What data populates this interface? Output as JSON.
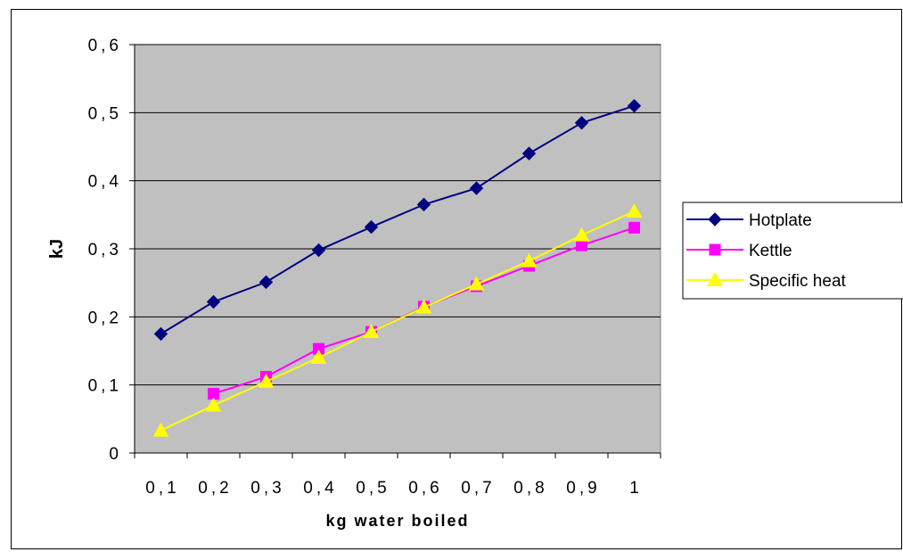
{
  "chart_data": {
    "type": "line",
    "title": "",
    "xlabel": "kg water boiled",
    "ylabel": "kJ",
    "categories": [
      "0,1",
      "0,2",
      "0,3",
      "0,4",
      "0,5",
      "0,6",
      "0,7",
      "0,8",
      "0,9",
      "1"
    ],
    "ylim": [
      0,
      0.6
    ],
    "yticks": [
      "0",
      "0,1",
      "0,2",
      "0,3",
      "0,4",
      "0,5",
      "0,6"
    ],
    "grid": true,
    "legend_position": "right",
    "plot_background": "#c0c0c0",
    "series": [
      {
        "name": "Hotplate",
        "color": "#000080",
        "marker": "diamond",
        "values": [
          0.175,
          0.222,
          0.251,
          0.298,
          0.332,
          0.365,
          0.389,
          0.44,
          0.485,
          0.51
        ]
      },
      {
        "name": "Kettle",
        "color": "#ff00ff",
        "marker": "square",
        "values": [
          null,
          0.087,
          0.112,
          0.153,
          0.178,
          0.215,
          0.245,
          0.275,
          0.305,
          0.331
        ]
      },
      {
        "name": "Specific heat",
        "color": "#ffff00",
        "marker": "triangle",
        "values": [
          0.033,
          0.07,
          0.105,
          0.14,
          0.178,
          0.214,
          0.248,
          0.282,
          0.32,
          0.355
        ]
      }
    ]
  }
}
